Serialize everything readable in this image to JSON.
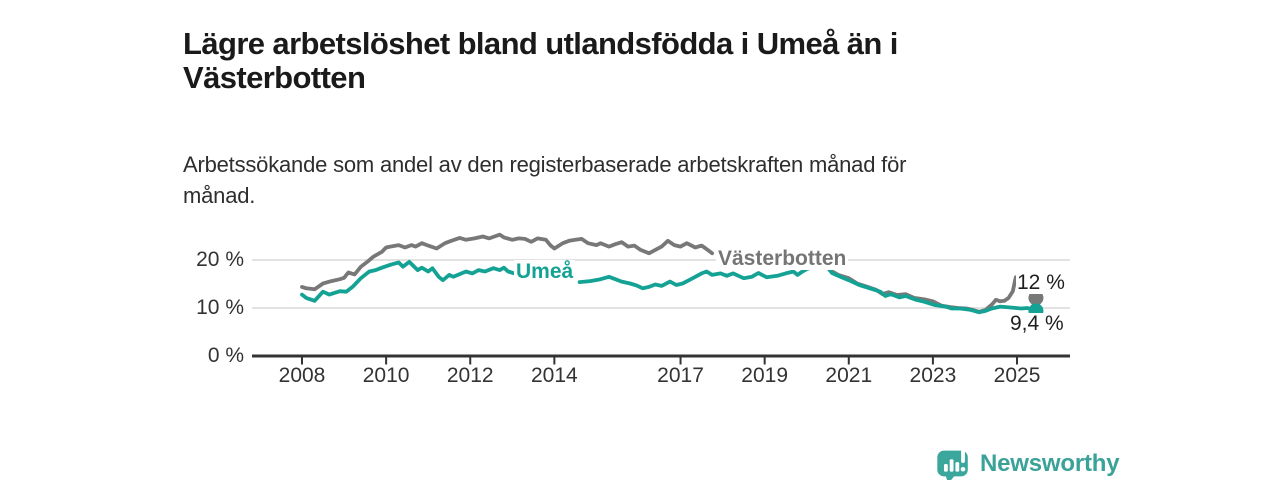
{
  "header": {
    "title_lines": [
      "Lägre arbetslöshet bland utlandsfödda i Umeå än i",
      "Västerbotten"
    ],
    "subtitle_lines": [
      "Arbetssökande som andel av den registerbaserade arbetskraften månad för",
      "månad."
    ]
  },
  "chart_data": {
    "type": "line",
    "title": "Lägre arbetslöshet bland utlandsfödda i Umeå än i Västerbotten",
    "subtitle": "Arbetssökande som andel av den registerbaserade arbetskraften månad för månad.",
    "unit": "%",
    "grid": "horizontal",
    "legend_position": "inline-labels",
    "x_axis": {
      "min": 2007.8,
      "max": 2025.8,
      "tick_values": [
        2008,
        2010,
        2012,
        2014,
        2017,
        2019,
        2021,
        2023,
        2025
      ],
      "tick_labels": [
        "2008",
        "2010",
        "2012",
        "2014",
        "2017",
        "2019",
        "2021",
        "2023",
        "2025"
      ]
    },
    "y_axis": {
      "min": 0,
      "max": 27,
      "tick_values": [
        0,
        10,
        20
      ],
      "tick_labels": [
        "0 %",
        "10 %",
        "20 %"
      ]
    },
    "series": [
      {
        "name": "Västerbotten",
        "color": "#787878",
        "end_label": "12 %",
        "end_dot": {
          "x": 2025.45,
          "y": 12.1
        },
        "segments": [
          [
            [
              2008.0,
              14.4
            ],
            [
              2008.1,
              14.1
            ],
            [
              2008.3,
              13.9
            ],
            [
              2008.5,
              15.1
            ],
            [
              2008.7,
              15.6
            ],
            [
              2008.9,
              16.0
            ],
            [
              2009.0,
              16.3
            ],
            [
              2009.1,
              17.4
            ],
            [
              2009.25,
              17.0
            ],
            [
              2009.4,
              18.6
            ],
            [
              2009.55,
              19.6
            ],
            [
              2009.7,
              20.7
            ],
            [
              2009.9,
              21.7
            ],
            [
              2010.0,
              22.6
            ],
            [
              2010.1,
              22.8
            ],
            [
              2010.3,
              23.1
            ],
            [
              2010.45,
              22.6
            ],
            [
              2010.6,
              23.1
            ],
            [
              2010.7,
              22.8
            ],
            [
              2010.85,
              23.5
            ],
            [
              2011.0,
              23.0
            ],
            [
              2011.2,
              22.4
            ],
            [
              2011.4,
              23.5
            ],
            [
              2011.55,
              24.0
            ],
            [
              2011.75,
              24.6
            ],
            [
              2011.9,
              24.2
            ],
            [
              2012.1,
              24.5
            ],
            [
              2012.3,
              24.9
            ],
            [
              2012.45,
              24.5
            ],
            [
              2012.7,
              25.3
            ],
            [
              2012.8,
              24.7
            ],
            [
              2013.0,
              24.2
            ],
            [
              2013.15,
              24.5
            ],
            [
              2013.3,
              24.4
            ],
            [
              2013.45,
              23.8
            ],
            [
              2013.6,
              24.5
            ],
            [
              2013.8,
              24.2
            ],
            [
              2013.9,
              23.1
            ],
            [
              2014.0,
              22.4
            ],
            [
              2014.2,
              23.5
            ],
            [
              2014.35,
              24.0
            ],
            [
              2014.5,
              24.2
            ],
            [
              2014.65,
              24.4
            ],
            [
              2014.8,
              23.5
            ],
            [
              2015.0,
              23.1
            ],
            [
              2015.1,
              23.5
            ],
            [
              2015.3,
              22.8
            ],
            [
              2015.45,
              23.3
            ],
            [
              2015.6,
              23.7
            ],
            [
              2015.75,
              22.8
            ],
            [
              2015.9,
              23.0
            ],
            [
              2016.05,
              22.1
            ],
            [
              2016.25,
              21.4
            ],
            [
              2016.4,
              22.1
            ],
            [
              2016.55,
              22.8
            ],
            [
              2016.7,
              24.0
            ],
            [
              2016.85,
              23.1
            ],
            [
              2017.0,
              22.8
            ],
            [
              2017.15,
              23.5
            ],
            [
              2017.35,
              22.6
            ],
            [
              2017.5,
              23.0
            ],
            [
              2017.6,
              22.4
            ],
            [
              2017.75,
              21.4
            ]
          ],
          [
            [
              2020.55,
              17.9
            ],
            [
              2020.75,
              16.9
            ],
            [
              2021.0,
              16.2
            ],
            [
              2021.2,
              15.1
            ],
            [
              2021.45,
              14.4
            ],
            [
              2021.65,
              13.8
            ],
            [
              2021.8,
              12.9
            ],
            [
              2021.95,
              13.3
            ],
            [
              2022.15,
              12.7
            ],
            [
              2022.35,
              12.9
            ],
            [
              2022.55,
              12.1
            ],
            [
              2022.8,
              11.8
            ],
            [
              2023.0,
              11.4
            ],
            [
              2023.2,
              10.5
            ],
            [
              2023.4,
              10.2
            ],
            [
              2023.6,
              10.0
            ],
            [
              2023.8,
              9.9
            ],
            [
              2023.95,
              9.6
            ],
            [
              2024.1,
              9.2
            ],
            [
              2024.25,
              9.6
            ],
            [
              2024.4,
              10.7
            ],
            [
              2024.5,
              11.7
            ],
            [
              2024.6,
              11.4
            ],
            [
              2024.7,
              11.5
            ],
            [
              2024.8,
              12.1
            ],
            [
              2024.9,
              13.5
            ],
            [
              2024.97,
              16.4
            ],
            [
              2025.03,
              16.1
            ],
            [
              2025.1,
              13.8
            ],
            [
              2025.22,
              13.4
            ],
            [
              2025.32,
              13.7
            ],
            [
              2025.4,
              12.9
            ],
            [
              2025.45,
              12.1
            ]
          ]
        ]
      },
      {
        "name": "Umeå",
        "color": "#14a294",
        "end_label": "9,4 %",
        "end_dot": {
          "x": 2025.45,
          "y": 9.4
        },
        "segments": [
          [
            [
              2008.0,
              12.8
            ],
            [
              2008.1,
              12.1
            ],
            [
              2008.3,
              11.5
            ],
            [
              2008.5,
              13.4
            ],
            [
              2008.65,
              12.8
            ],
            [
              2008.9,
              13.5
            ],
            [
              2009.05,
              13.4
            ],
            [
              2009.2,
              14.4
            ],
            [
              2009.4,
              16.2
            ],
            [
              2009.6,
              17.6
            ],
            [
              2009.75,
              17.9
            ],
            [
              2009.9,
              18.4
            ],
            [
              2010.1,
              19.0
            ],
            [
              2010.3,
              19.5
            ],
            [
              2010.4,
              18.6
            ],
            [
              2010.55,
              19.6
            ],
            [
              2010.75,
              17.9
            ],
            [
              2010.85,
              18.4
            ],
            [
              2011.0,
              17.6
            ],
            [
              2011.1,
              18.3
            ],
            [
              2011.25,
              16.5
            ],
            [
              2011.35,
              15.8
            ],
            [
              2011.5,
              16.9
            ],
            [
              2011.6,
              16.5
            ],
            [
              2011.9,
              17.6
            ],
            [
              2012.05,
              17.2
            ],
            [
              2012.2,
              17.9
            ],
            [
              2012.35,
              17.6
            ],
            [
              2012.55,
              18.3
            ],
            [
              2012.7,
              17.9
            ],
            [
              2012.8,
              18.4
            ],
            [
              2012.9,
              17.6
            ],
            [
              2013.05,
              17.2
            ]
          ],
          [
            [
              2014.6,
              15.4
            ],
            [
              2014.85,
              15.6
            ],
            [
              2015.1,
              16.0
            ],
            [
              2015.3,
              16.5
            ],
            [
              2015.45,
              16.0
            ],
            [
              2015.6,
              15.5
            ],
            [
              2015.8,
              15.1
            ],
            [
              2015.95,
              14.7
            ],
            [
              2016.1,
              14.1
            ],
            [
              2016.25,
              14.4
            ],
            [
              2016.4,
              14.9
            ],
            [
              2016.55,
              14.6
            ],
            [
              2016.75,
              15.5
            ],
            [
              2016.9,
              14.8
            ],
            [
              2017.05,
              15.1
            ],
            [
              2017.2,
              15.8
            ],
            [
              2017.35,
              16.5
            ],
            [
              2017.5,
              17.2
            ],
            [
              2017.62,
              17.6
            ],
            [
              2017.75,
              16.9
            ],
            [
              2017.95,
              17.2
            ],
            [
              2018.1,
              16.7
            ],
            [
              2018.25,
              17.2
            ],
            [
              2018.5,
              16.2
            ],
            [
              2018.7,
              16.5
            ],
            [
              2018.85,
              17.3
            ],
            [
              2019.05,
              16.4
            ],
            [
              2019.3,
              16.7
            ],
            [
              2019.5,
              17.2
            ],
            [
              2019.68,
              17.6
            ],
            [
              2019.78,
              16.9
            ],
            [
              2019.88,
              17.5
            ],
            [
              2020.0,
              18.1
            ],
            [
              2020.15,
              18.5
            ],
            [
              2020.27,
              18.9
            ],
            [
              2020.35,
              19.3
            ],
            [
              2020.45,
              19.0
            ],
            [
              2020.6,
              17.3
            ],
            [
              2020.8,
              16.5
            ],
            [
              2021.0,
              15.8
            ],
            [
              2021.25,
              14.8
            ],
            [
              2021.5,
              14.1
            ],
            [
              2021.75,
              13.4
            ],
            [
              2021.87,
              12.5
            ],
            [
              2022.0,
              12.9
            ],
            [
              2022.2,
              12.2
            ],
            [
              2022.35,
              12.5
            ],
            [
              2022.6,
              11.7
            ],
            [
              2022.8,
              11.3
            ],
            [
              2023.05,
              10.6
            ],
            [
              2023.3,
              10.3
            ],
            [
              2023.45,
              9.9
            ],
            [
              2023.65,
              9.9
            ],
            [
              2023.9,
              9.6
            ],
            [
              2024.1,
              9.1
            ],
            [
              2024.25,
              9.4
            ],
            [
              2024.4,
              9.9
            ],
            [
              2024.6,
              10.3
            ],
            [
              2024.85,
              10.1
            ],
            [
              2025.1,
              9.9
            ],
            [
              2025.25,
              10.0
            ],
            [
              2025.45,
              9.4
            ]
          ]
        ]
      }
    ]
  },
  "colors": {
    "vasterbotten_line": "#787878",
    "umea_line": "#14a294",
    "grid": "#d9d9d9",
    "axis": "#333333",
    "title_text": "#1a1a1a",
    "logo_teal": "#3aa298"
  },
  "footer": {
    "logo_text": "Newsworthy"
  }
}
